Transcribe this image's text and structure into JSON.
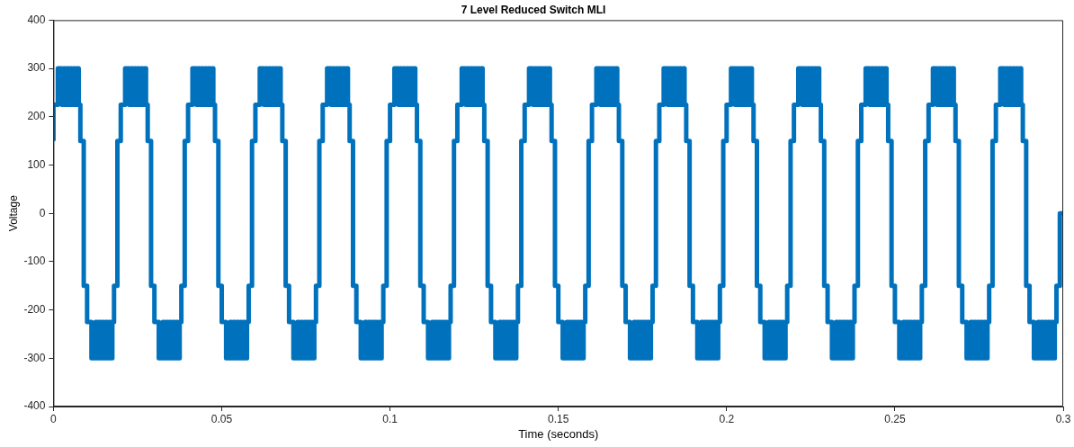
{
  "chart_data": {
    "type": "step",
    "title": "7 Level Reduced Switch MLI",
    "xlabel": "Time (seconds)",
    "ylabel": "Voltage",
    "xlim": [
      0,
      0.3
    ],
    "xticks": [
      0,
      0.05,
      0.1,
      0.15,
      0.2,
      0.25,
      0.3
    ],
    "ylim": [
      -400,
      400
    ],
    "yticks": [
      -400,
      -300,
      -200,
      -100,
      0,
      100,
      200,
      300,
      400
    ],
    "grid": false,
    "legend": false,
    "marker": "none",
    "line_style": "solid",
    "series": [
      {
        "color": "#0072bd",
        "x": [
          0.0,
          0.0013,
          0.0025,
          0.003,
          0.0035,
          0.004,
          0.0045,
          0.005,
          0.0055,
          0.006,
          0.0065,
          0.007,
          0.0075,
          0.008,
          0.009,
          0.01,
          0.0113,
          0.0125,
          0.013,
          0.0135,
          0.014,
          0.0145,
          0.015,
          0.0155,
          0.016,
          0.0165,
          0.017,
          0.0175,
          0.018,
          0.019,
          0.02,
          0.0213,
          0.0225,
          0.023,
          0.0235,
          0.024,
          0.0245,
          0.025,
          0.0255,
          0.026,
          0.0265,
          0.027,
          0.0275,
          0.028,
          0.029,
          0.03,
          0.0313,
          0.0325,
          0.033,
          0.0335,
          0.034,
          0.0345,
          0.035,
          0.0355,
          0.036,
          0.0365,
          0.037,
          0.0375,
          0.038,
          0.039,
          0.04,
          0.0413,
          0.0425,
          0.043,
          0.0435,
          0.044,
          0.0445,
          0.045,
          0.0455,
          0.046,
          0.0465,
          0.047,
          0.0475,
          0.048,
          0.049,
          0.05,
          0.0513,
          0.0525,
          0.053,
          0.0535,
          0.054,
          0.0545,
          0.055,
          0.0555,
          0.056,
          0.0565,
          0.057,
          0.0575,
          0.058,
          0.059,
          0.06,
          0.0613,
          0.0625,
          0.063,
          0.0635,
          0.064,
          0.0645,
          0.065,
          0.0655,
          0.066,
          0.0665,
          0.067,
          0.0675,
          0.068,
          0.069,
          0.07,
          0.0713,
          0.0725,
          0.073,
          0.0735,
          0.074,
          0.0745,
          0.075,
          0.0755,
          0.076,
          0.0765,
          0.077,
          0.0775,
          0.078,
          0.079,
          0.08,
          0.0813,
          0.0825,
          0.083,
          0.0835,
          0.084,
          0.0845,
          0.085,
          0.0855,
          0.086,
          0.0865,
          0.087,
          0.0875,
          0.088,
          0.089,
          0.09,
          0.0913,
          0.0925,
          0.093,
          0.0935,
          0.094,
          0.0945,
          0.095,
          0.0955,
          0.096,
          0.0965,
          0.097,
          0.0975,
          0.098,
          0.099,
          0.1,
          0.1013,
          0.1025,
          0.103,
          0.1035,
          0.104,
          0.1045,
          0.105,
          0.1055,
          0.106,
          0.1065,
          0.107,
          0.1075,
          0.108,
          0.109,
          0.11,
          0.1113,
          0.1125,
          0.113,
          0.1135,
          0.114,
          0.1145,
          0.115,
          0.1155,
          0.116,
          0.1165,
          0.117,
          0.1175,
          0.118,
          0.119,
          0.12,
          0.1213,
          0.1225,
          0.123,
          0.1235,
          0.124,
          0.1245,
          0.125,
          0.1255,
          0.126,
          0.1265,
          0.127,
          0.1275,
          0.128,
          0.129,
          0.13,
          0.1313,
          0.1325,
          0.133,
          0.1335,
          0.134,
          0.1345,
          0.135,
          0.1355,
          0.136,
          0.1365,
          0.137,
          0.1375,
          0.138,
          0.139,
          0.14,
          0.1413,
          0.1425,
          0.143,
          0.1435,
          0.144,
          0.1445,
          0.145,
          0.1455,
          0.146,
          0.1465,
          0.147,
          0.1475,
          0.148,
          0.149,
          0.15,
          0.1513,
          0.1525,
          0.153,
          0.1535,
          0.154,
          0.1545,
          0.155,
          0.1555,
          0.156,
          0.1565,
          0.157,
          0.1575,
          0.158,
          0.159,
          0.16,
          0.1613,
          0.1625,
          0.163,
          0.1635,
          0.164,
          0.1645,
          0.165,
          0.1655,
          0.166,
          0.1665,
          0.167,
          0.1675,
          0.168,
          0.169,
          0.17,
          0.1713,
          0.1725,
          0.173,
          0.1735,
          0.174,
          0.1745,
          0.175,
          0.1755,
          0.176,
          0.1765,
          0.177,
          0.1775,
          0.178,
          0.179,
          0.18,
          0.1813,
          0.1825,
          0.183,
          0.1835,
          0.184,
          0.1845,
          0.185,
          0.1855,
          0.186,
          0.1865,
          0.187,
          0.1875,
          0.188,
          0.189,
          0.19,
          0.1913,
          0.1925,
          0.193,
          0.1935,
          0.194,
          0.1945,
          0.195,
          0.1955,
          0.196,
          0.1965,
          0.197,
          0.1975,
          0.198,
          0.199,
          0.2,
          0.2013,
          0.2025,
          0.203,
          0.2035,
          0.204,
          0.2045,
          0.205,
          0.2055,
          0.206,
          0.2065,
          0.207,
          0.2075,
          0.208,
          0.209,
          0.21,
          0.2113,
          0.2125,
          0.213,
          0.2135,
          0.214,
          0.2145,
          0.215,
          0.2155,
          0.216,
          0.2165,
          0.217,
          0.2175,
          0.218,
          0.219,
          0.22,
          0.2213,
          0.2225,
          0.223,
          0.2235,
          0.224,
          0.2245,
          0.225,
          0.2255,
          0.226,
          0.2265,
          0.227,
          0.2275,
          0.228,
          0.229,
          0.23,
          0.2313,
          0.2325,
          0.233,
          0.2335,
          0.234,
          0.2345,
          0.235,
          0.2355,
          0.236,
          0.2365,
          0.237,
          0.2375,
          0.238,
          0.239,
          0.24,
          0.2413,
          0.2425,
          0.243,
          0.2435,
          0.244,
          0.2445,
          0.245,
          0.2455,
          0.246,
          0.2465,
          0.247,
          0.2475,
          0.248,
          0.249,
          0.25,
          0.2513,
          0.2525,
          0.253,
          0.2535,
          0.254,
          0.2545,
          0.255,
          0.2555,
          0.256,
          0.2565,
          0.257,
          0.2575,
          0.258,
          0.259,
          0.26,
          0.2613,
          0.2625,
          0.263,
          0.2635,
          0.264,
          0.2645,
          0.265,
          0.2655,
          0.266,
          0.2665,
          0.267,
          0.2675,
          0.268,
          0.269,
          0.27,
          0.2713,
          0.2725,
          0.273,
          0.2735,
          0.274,
          0.2745,
          0.275,
          0.2755,
          0.276,
          0.2765,
          0.277,
          0.2775,
          0.278,
          0.279,
          0.28,
          0.2813,
          0.2825,
          0.283,
          0.2835,
          0.284,
          0.2845,
          0.285,
          0.2855,
          0.286,
          0.2865,
          0.287,
          0.2875,
          0.288,
          0.289,
          0.29,
          0.2913,
          0.2925,
          0.293,
          0.2935,
          0.294,
          0.2945,
          0.295,
          0.2955,
          0.296,
          0.2965,
          0.297,
          0.2975,
          0.298,
          0.299,
          0.3
        ],
        "values": [
          150,
          225,
          300,
          225,
          300,
          225,
          300,
          225,
          300,
          225,
          300,
          225,
          300,
          225,
          150,
          -150,
          -225,
          -300,
          -225,
          -300,
          -225,
          -300,
          -225,
          -300,
          -225,
          -300,
          -225,
          -300,
          -225,
          -150,
          150,
          225,
          300,
          225,
          300,
          225,
          300,
          225,
          300,
          225,
          300,
          225,
          300,
          225,
          150,
          -150,
          -225,
          -300,
          -225,
          -300,
          -225,
          -300,
          -225,
          -300,
          -225,
          -300,
          -225,
          -300,
          -225,
          -150,
          150,
          225,
          300,
          225,
          300,
          225,
          300,
          225,
          300,
          225,
          300,
          225,
          300,
          225,
          150,
          -150,
          -225,
          -300,
          -225,
          -300,
          -225,
          -300,
          -225,
          -300,
          -225,
          -300,
          -225,
          -300,
          -225,
          -150,
          150,
          225,
          300,
          225,
          300,
          225,
          300,
          225,
          300,
          225,
          300,
          225,
          300,
          225,
          150,
          -150,
          -225,
          -300,
          -225,
          -300,
          -225,
          -300,
          -225,
          -300,
          -225,
          -300,
          -225,
          -300,
          -225,
          -150,
          150,
          225,
          300,
          225,
          300,
          225,
          300,
          225,
          300,
          225,
          300,
          225,
          300,
          225,
          150,
          -150,
          -225,
          -300,
          -225,
          -300,
          -225,
          -300,
          -225,
          -300,
          -225,
          -300,
          -225,
          -300,
          -225,
          -150,
          150,
          225,
          300,
          225,
          300,
          225,
          300,
          225,
          300,
          225,
          300,
          225,
          300,
          225,
          150,
          -150,
          -225,
          -300,
          -225,
          -300,
          -225,
          -300,
          -225,
          -300,
          -225,
          -300,
          -225,
          -300,
          -225,
          -150,
          150,
          225,
          300,
          225,
          300,
          225,
          300,
          225,
          300,
          225,
          300,
          225,
          300,
          225,
          150,
          -150,
          -225,
          -300,
          -225,
          -300,
          -225,
          -300,
          -225,
          -300,
          -225,
          -300,
          -225,
          -300,
          -225,
          -150,
          150,
          225,
          300,
          225,
          300,
          225,
          300,
          225,
          300,
          225,
          300,
          225,
          300,
          225,
          150,
          -150,
          -225,
          -300,
          -225,
          -300,
          -225,
          -300,
          -225,
          -300,
          -225,
          -300,
          -225,
          -300,
          -225,
          -150,
          150,
          225,
          300,
          225,
          300,
          225,
          300,
          225,
          300,
          225,
          300,
          225,
          300,
          225,
          150,
          -150,
          -225,
          -300,
          -225,
          -300,
          -225,
          -300,
          -225,
          -300,
          -225,
          -300,
          -225,
          -300,
          -225,
          -150,
          150,
          225,
          300,
          225,
          300,
          225,
          300,
          225,
          300,
          225,
          300,
          225,
          300,
          225,
          150,
          -150,
          -225,
          -300,
          -225,
          -300,
          -225,
          -300,
          -225,
          -300,
          -225,
          -300,
          -225,
          -300,
          -225,
          -150,
          150,
          225,
          300,
          225,
          300,
          225,
          300,
          225,
          300,
          225,
          300,
          225,
          300,
          225,
          150,
          -150,
          -225,
          -300,
          -225,
          -300,
          -225,
          -300,
          -225,
          -300,
          -225,
          -300,
          -225,
          -300,
          -225,
          -150,
          150,
          225,
          300,
          225,
          300,
          225,
          300,
          225,
          300,
          225,
          300,
          225,
          300,
          225,
          150,
          -150,
          -225,
          -300,
          -225,
          -300,
          -225,
          -300,
          -225,
          -300,
          -225,
          -300,
          -225,
          -300,
          -225,
          -150,
          150,
          225,
          300,
          225,
          300,
          225,
          300,
          225,
          300,
          225,
          300,
          225,
          300,
          225,
          150,
          -150,
          -225,
          -300,
          -225,
          -300,
          -225,
          -300,
          -225,
          -300,
          -225,
          -300,
          -225,
          -300,
          -225,
          -150,
          150,
          225,
          300,
          225,
          300,
          225,
          300,
          225,
          300,
          225,
          300,
          225,
          300,
          225,
          150,
          -150,
          -225,
          -300,
          -225,
          -300,
          -225,
          -300,
          -225,
          -300,
          -225,
          -300,
          -225,
          -300,
          -225,
          -150,
          150,
          225,
          300,
          225,
          300,
          225,
          300,
          225,
          300,
          225,
          300,
          225,
          300,
          225,
          150,
          -150,
          -225,
          -300,
          -225,
          -300,
          -225,
          -300,
          -225,
          -300,
          -225,
          -300,
          -225,
          -300,
          -225,
          -150,
          0
        ]
      }
    ]
  }
}
